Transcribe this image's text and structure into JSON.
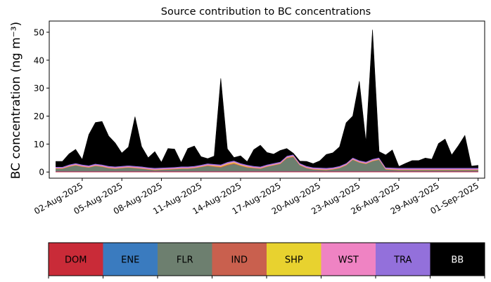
{
  "chart_data": {
    "type": "area",
    "stacked": true,
    "title": "Source contribution to BC concentrations",
    "ylabel": "BC concentration (ng m⁻³)",
    "xlabel": "",
    "ylim": [
      -2.2,
      54
    ],
    "xlim": [
      "2025-07-30T12:00",
      "2025-09-01T12:00"
    ],
    "yticks": [
      0,
      10,
      20,
      30,
      40,
      50
    ],
    "xticks": [
      "02-Aug-2025",
      "05-Aug-2025",
      "08-Aug-2025",
      "11-Aug-2025",
      "14-Aug-2025",
      "17-Aug-2025",
      "20-Aug-2025",
      "23-Aug-2025",
      "26-Aug-2025",
      "29-Aug-2025",
      "01-Sep-2025"
    ],
    "xtick_dates": [
      "2025-08-02",
      "2025-08-05",
      "2025-08-08",
      "2025-08-11",
      "2025-08-14",
      "2025-08-17",
      "2025-08-20",
      "2025-08-23",
      "2025-08-26",
      "2025-08-29",
      "2025-09-01"
    ],
    "grid": false,
    "legend_position": "bottom",
    "x": [
      "2025-07-31T00:00",
      "2025-07-31T12:00",
      "2025-08-01T00:00",
      "2025-08-01T12:00",
      "2025-08-02T00:00",
      "2025-08-02T12:00",
      "2025-08-03T00:00",
      "2025-08-03T12:00",
      "2025-08-04T00:00",
      "2025-08-04T12:00",
      "2025-08-05T00:00",
      "2025-08-05T12:00",
      "2025-08-06T00:00",
      "2025-08-06T12:00",
      "2025-08-07T00:00",
      "2025-08-07T12:00",
      "2025-08-08T00:00",
      "2025-08-08T12:00",
      "2025-08-09T00:00",
      "2025-08-09T12:00",
      "2025-08-10T00:00",
      "2025-08-10T12:00",
      "2025-08-11T00:00",
      "2025-08-11T12:00",
      "2025-08-12T00:00",
      "2025-08-12T12:00",
      "2025-08-13T00:00",
      "2025-08-13T12:00",
      "2025-08-14T00:00",
      "2025-08-14T12:00",
      "2025-08-15T00:00",
      "2025-08-15T12:00",
      "2025-08-16T00:00",
      "2025-08-16T12:00",
      "2025-08-17T00:00",
      "2025-08-17T12:00",
      "2025-08-18T00:00",
      "2025-08-18T12:00",
      "2025-08-19T00:00",
      "2025-08-19T12:00",
      "2025-08-20T00:00",
      "2025-08-20T12:00",
      "2025-08-21T00:00",
      "2025-08-21T12:00",
      "2025-08-22T00:00",
      "2025-08-22T12:00",
      "2025-08-23T00:00",
      "2025-08-23T12:00",
      "2025-08-24T00:00",
      "2025-08-24T12:00",
      "2025-08-25T00:00",
      "2025-08-25T12:00",
      "2025-08-26T00:00",
      "2025-08-26T12:00",
      "2025-08-27T00:00",
      "2025-08-27T12:00",
      "2025-08-28T00:00",
      "2025-08-28T12:00",
      "2025-08-29T00:00",
      "2025-08-29T12:00",
      "2025-08-30T00:00",
      "2025-08-30T12:00",
      "2025-08-31T00:00",
      "2025-08-31T12:00",
      "2025-09-01T00:00"
    ],
    "series": [
      {
        "name": "DOM",
        "color": "#c92b38",
        "values": [
          0.3,
          0.3,
          0.3,
          0.3,
          0.3,
          0.3,
          0.3,
          0.3,
          0.3,
          0.3,
          0.3,
          0.3,
          0.3,
          0.3,
          0.3,
          0.3,
          0.3,
          0.3,
          0.3,
          0.3,
          0.3,
          0.3,
          0.3,
          0.3,
          0.3,
          0.3,
          0.3,
          0.3,
          0.3,
          0.3,
          0.3,
          0.3,
          0.3,
          0.3,
          0.3,
          0.3,
          0.3,
          0.3,
          0.3,
          0.3,
          0.3,
          0.3,
          0.3,
          0.3,
          0.3,
          0.3,
          0.3,
          0.3,
          0.3,
          0.3,
          0.3,
          0.3,
          0.3,
          0.3,
          0.3,
          0.3,
          0.3,
          0.3,
          0.3,
          0.3,
          0.3,
          0.3,
          0.3,
          0.3,
          0.3
        ]
      },
      {
        "name": "ENE",
        "color": "#3a7bbf",
        "values": [
          0.1,
          0.1,
          0.1,
          0.1,
          0.1,
          0.1,
          0.1,
          0.1,
          0.1,
          0.1,
          0.1,
          0.1,
          0.1,
          0.1,
          0.1,
          0.1,
          0.1,
          0.1,
          0.1,
          0.1,
          0.1,
          0.1,
          0.1,
          0.1,
          0.1,
          0.1,
          0.1,
          0.1,
          0.1,
          0.1,
          0.1,
          0.1,
          0.1,
          0.1,
          0.1,
          0.1,
          0.1,
          0.1,
          0.1,
          0.1,
          0.1,
          0.1,
          0.1,
          0.1,
          0.1,
          0.1,
          0.1,
          0.1,
          0.1,
          0.1,
          0.1,
          0.1,
          0.1,
          0.1,
          0.1,
          0.1,
          0.1,
          0.1,
          0.1,
          0.1,
          0.1,
          0.1,
          0.1,
          0.1,
          0.1
        ]
      },
      {
        "name": "FLR",
        "color": "#6d7f6f",
        "values": [
          0.8,
          0.8,
          1.5,
          2.0,
          1.5,
          1.2,
          1.8,
          1.5,
          1.0,
          0.8,
          1.0,
          1.2,
          1.0,
          0.8,
          0.5,
          0.3,
          0.4,
          0.5,
          0.6,
          0.8,
          0.8,
          1.0,
          1.4,
          1.8,
          1.5,
          1.2,
          2.0,
          2.5,
          1.8,
          1.2,
          1.0,
          0.8,
          1.5,
          2.0,
          2.5,
          4.5,
          5.0,
          2.0,
          1.0,
          0.5,
          0.4,
          0.3,
          0.5,
          1.0,
          2.0,
          4.0,
          3.0,
          2.5,
          3.5,
          4.0,
          0.5,
          0.4,
          0.3,
          0.3,
          0.3,
          0.3,
          0.3,
          0.3,
          0.3,
          0.3,
          0.3,
          0.3,
          0.3,
          0.3,
          0.3
        ]
      },
      {
        "name": "IND",
        "color": "#c9604e",
        "values": [
          0.1,
          0.1,
          0.1,
          0.1,
          0.1,
          0.1,
          0.1,
          0.1,
          0.1,
          0.1,
          0.1,
          0.1,
          0.1,
          0.1,
          0.1,
          0.1,
          0.1,
          0.1,
          0.1,
          0.1,
          0.1,
          0.1,
          0.1,
          0.2,
          0.2,
          0.3,
          0.3,
          0.3,
          0.2,
          0.2,
          0.1,
          0.1,
          0.1,
          0.1,
          0.1,
          0.2,
          0.2,
          0.1,
          0.1,
          0.1,
          0.1,
          0.1,
          0.1,
          0.1,
          0.1,
          0.1,
          0.1,
          0.1,
          0.1,
          0.1,
          0.1,
          0.1,
          0.1,
          0.1,
          0.1,
          0.1,
          0.1,
          0.1,
          0.1,
          0.1,
          0.1,
          0.1,
          0.1,
          0.1,
          0.1
        ]
      },
      {
        "name": "SHP",
        "color": "#e8d22f",
        "values": [
          0.1,
          0.1,
          0.1,
          0.1,
          0.1,
          0.1,
          0.1,
          0.1,
          0.1,
          0.1,
          0.1,
          0.1,
          0.1,
          0.1,
          0.1,
          0.1,
          0.1,
          0.1,
          0.1,
          0.1,
          0.1,
          0.1,
          0.1,
          0.1,
          0.2,
          0.2,
          0.3,
          0.3,
          0.2,
          0.2,
          0.1,
          0.1,
          0.1,
          0.1,
          0.1,
          0.1,
          0.1,
          0.1,
          0.1,
          0.1,
          0.1,
          0.1,
          0.1,
          0.1,
          0.1,
          0.1,
          0.1,
          0.1,
          0.1,
          0.1,
          0.1,
          0.1,
          0.1,
          0.1,
          0.1,
          0.1,
          0.1,
          0.1,
          0.1,
          0.1,
          0.1,
          0.1,
          0.1,
          0.1,
          0.1
        ]
      },
      {
        "name": "WST",
        "color": "#ef83c3",
        "values": [
          0.2,
          0.2,
          0.3,
          0.3,
          0.3,
          0.3,
          0.3,
          0.3,
          0.3,
          0.3,
          0.3,
          0.3,
          0.3,
          0.3,
          0.3,
          0.3,
          0.3,
          0.3,
          0.3,
          0.3,
          0.3,
          0.3,
          0.3,
          0.3,
          0.3,
          0.3,
          0.3,
          0.3,
          0.3,
          0.3,
          0.3,
          0.3,
          0.3,
          0.3,
          0.3,
          0.3,
          0.3,
          0.3,
          0.3,
          0.3,
          0.3,
          0.3,
          0.3,
          0.3,
          0.3,
          0.3,
          0.3,
          0.3,
          0.3,
          0.3,
          0.3,
          0.3,
          0.3,
          0.3,
          0.3,
          0.3,
          0.3,
          0.3,
          0.3,
          0.3,
          0.3,
          0.3,
          0.3,
          0.3,
          0.3
        ]
      },
      {
        "name": "TRA",
        "color": "#9370db",
        "values": [
          0.3,
          0.3,
          0.3,
          0.3,
          0.3,
          0.3,
          0.3,
          0.3,
          0.3,
          0.3,
          0.3,
          0.3,
          0.3,
          0.3,
          0.3,
          0.3,
          0.3,
          0.3,
          0.3,
          0.3,
          0.3,
          0.3,
          0.3,
          0.3,
          0.3,
          0.3,
          0.3,
          0.3,
          0.3,
          0.3,
          0.3,
          0.3,
          0.3,
          0.3,
          0.3,
          0.3,
          0.3,
          0.3,
          0.3,
          0.3,
          0.3,
          0.3,
          0.3,
          0.3,
          0.3,
          0.3,
          0.3,
          0.3,
          0.3,
          0.3,
          0.3,
          0.3,
          0.3,
          0.3,
          0.3,
          0.3,
          0.3,
          0.3,
          0.3,
          0.3,
          0.3,
          0.3,
          0.3,
          0.3,
          0.3
        ]
      },
      {
        "name": "BB",
        "color": "#000000",
        "values": [
          1.9,
          1.9,
          3.8,
          4.9,
          1.8,
          11.0,
          14.7,
          15.4,
          10.7,
          8.4,
          4.6,
          6.5,
          17.6,
          7.1,
          3.4,
          5.8,
          1.9,
          6.7,
          6.4,
          1.4,
          6.4,
          7.1,
          2.9,
          1.7,
          2.8,
          30.8,
          4.7,
          1.1,
          2.6,
          1.1,
          5.8,
          7.6,
          4.3,
          3.2,
          4.0,
          2.6,
          0.4,
          0.7,
          1.6,
          1.3,
          2.4,
          4.8,
          5.2,
          6.8,
          14.4,
          14.8,
          28.3,
          7.1,
          46.2,
          2.1,
          4.4,
          6.3,
          0.5,
          1.6,
          2.6,
          2.6,
          3.5,
          3.1,
          8.7,
          10.3,
          4.6,
          7.9,
          11.6,
          0.6,
          0.9
        ]
      }
    ]
  }
}
